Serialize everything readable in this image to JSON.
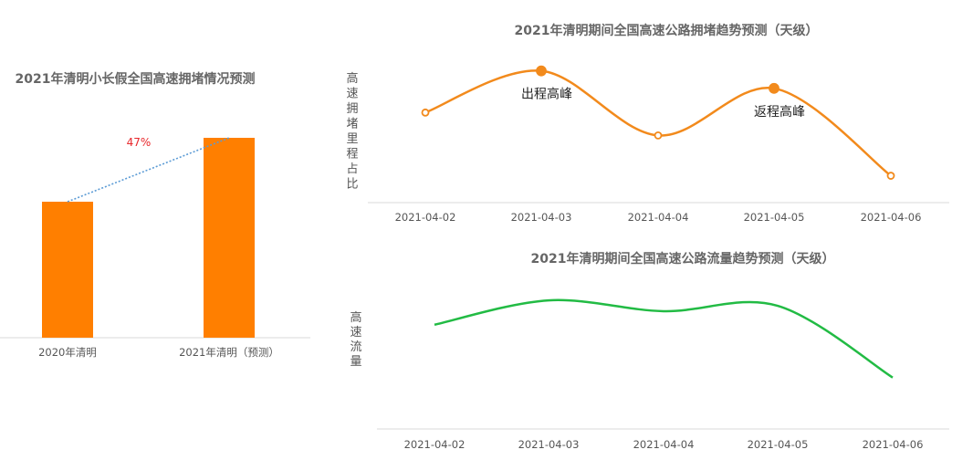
{
  "chart_data": [
    {
      "type": "bar",
      "title": "2021年清明小长假全国高速拥堵情况预测",
      "categories": [
        "2020年清明",
        "2021年清明（预测）"
      ],
      "values": [
        100,
        147
      ],
      "growth_label": "47%",
      "ylim": [
        0,
        147
      ],
      "grid": false,
      "colors": {
        "bar": "#ff7f00",
        "trend": "#5b9bd5",
        "growth": "#e8272b"
      }
    },
    {
      "type": "line",
      "title": "2021年清明期间全国高速公路拥堵趋势预测（天级）",
      "ylabel": "高速拥堵里程占比",
      "x": [
        "2021-04-02",
        "2021-04-03",
        "2021-04-04",
        "2021-04-05",
        "2021-04-06"
      ],
      "values": [
        0.67,
        0.98,
        0.5,
        0.85,
        0.2
      ],
      "ylim": [
        0,
        1.1
      ],
      "annotations": [
        {
          "x": "2021-04-03",
          "text": "出程高峰"
        },
        {
          "x": "2021-04-05",
          "text": "返程高峰"
        }
      ],
      "grid": false,
      "colors": {
        "line": "#f28a1c"
      }
    },
    {
      "type": "line",
      "title": "2021年清明期间全国高速公路流量趋势预测（天级）",
      "ylabel": "高速流量",
      "x": [
        "2021-04-02",
        "2021-04-03",
        "2021-04-04",
        "2021-04-05",
        "2021-04-06"
      ],
      "values": [
        0.77,
        0.95,
        0.87,
        0.91,
        0.38
      ],
      "ylim": [
        0,
        1.2
      ],
      "grid": false,
      "colors": {
        "line": "#22bb44"
      }
    }
  ]
}
